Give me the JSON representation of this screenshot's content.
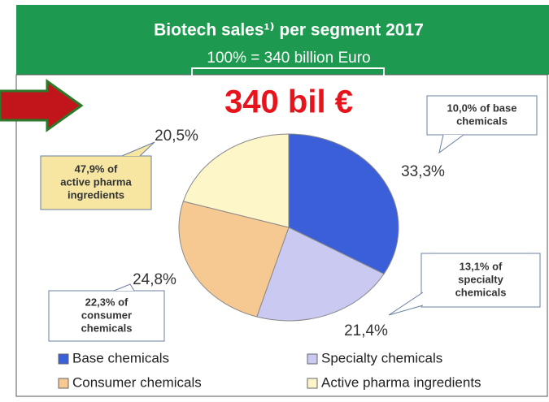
{
  "chart_data": {
    "type": "pie",
    "title": "Biotech sales¹⁾ per segment 2017",
    "subtitle": "100% = 340 billion Euro",
    "annotation": "340 bil €",
    "series": [
      {
        "name": "Base chemicals",
        "color": "#3b5fd9"
      },
      {
        "name": "Specialty chemicals",
        "color": "#c9c9f2"
      },
      {
        "name": "Consumer chemicals",
        "color": "#f6c993"
      },
      {
        "name": "Active pharma ingredients",
        "color": "#fdf6c9"
      }
    ],
    "categories": [
      "Base chemicals",
      "Specialty chemicals",
      "Consumer chemicals",
      "Active pharma ingredients"
    ],
    "values": [
      33.3,
      21.4,
      24.8,
      20.5
    ],
    "value_labels": [
      "33,3%",
      "21,4%",
      "24,8%",
      "20,5%"
    ],
    "callouts": [
      [
        "10,0% of base",
        "chemicals"
      ],
      [
        "13,1% of",
        "specialty",
        "chemicals"
      ],
      [
        "22,3% of",
        "consumer",
        "chemicals"
      ],
      [
        "47,9% of",
        "active pharma",
        "ingredients"
      ]
    ]
  }
}
